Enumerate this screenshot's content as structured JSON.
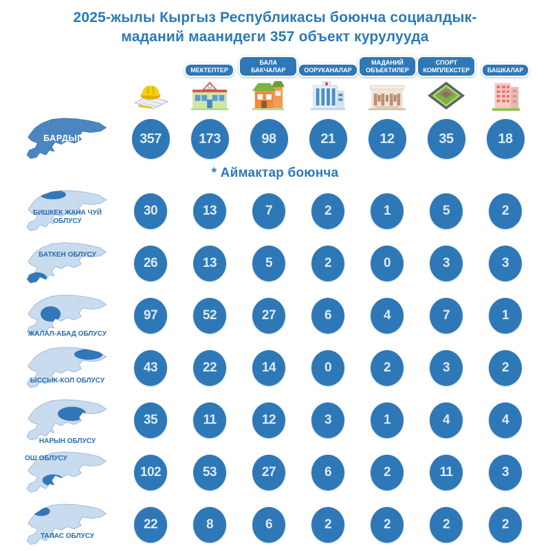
{
  "title": "2025-жылы Кыргыз Республикасы боюнча социалдык-маданий маанидеги 357 объект курулууда",
  "subtitle": "* Аймактар боюнча",
  "header": {
    "total_column_icon": "construction-helmet-icon",
    "columns": [
      {
        "label": "МЕКТЕПТЕР",
        "icon": "school-icon"
      },
      {
        "label": "БАЛА БАКЧАЛАР",
        "icon": "kindergarten-icon"
      },
      {
        "label": "ООРУКАНАЛАР",
        "icon": "hospital-icon"
      },
      {
        "label": "МАДАНИЙ ОБЪЕКТИЛЕР",
        "icon": "culture-icon"
      },
      {
        "label": "СПОРТ КОМПЛЕКСТЕР",
        "icon": "sport-icon"
      },
      {
        "label": "БАШКАЛАР",
        "icon": "other-building-icon"
      }
    ]
  },
  "rows": [
    {
      "region": "БАРДЫГЫ",
      "values": [
        357,
        173,
        98,
        21,
        12,
        35,
        18
      ]
    },
    {
      "region": "БИШКЕК ЖАНА ЧУЙ ОБЛУСУ",
      "values": [
        30,
        13,
        7,
        2,
        1,
        5,
        2
      ]
    },
    {
      "region": "БАТКЕН ОБЛУСУ",
      "values": [
        26,
        13,
        5,
        2,
        0,
        3,
        3
      ]
    },
    {
      "region": "ЖАЛАЛ-АБАД ОБЛУСУ",
      "values": [
        97,
        52,
        27,
        6,
        4,
        7,
        1
      ]
    },
    {
      "region": "ЫССЫК-КОЛ ОБЛУСУ",
      "values": [
        43,
        22,
        14,
        0,
        2,
        3,
        2
      ]
    },
    {
      "region": "НАРЫН ОБЛУСУ",
      "values": [
        35,
        11,
        12,
        3,
        1,
        4,
        4
      ]
    },
    {
      "region": "ОШ ОБЛУСУ",
      "values": [
        102,
        53,
        27,
        6,
        2,
        11,
        3
      ]
    },
    {
      "region": "ТАЛАС ОБЛУСУ",
      "values": [
        22,
        8,
        6,
        2,
        2,
        2,
        2
      ]
    }
  ],
  "colors": {
    "accent_blue": "#2e78b8",
    "title_blue": "#2a79b8",
    "map_light_blue": "#c9dbee",
    "map_highlight_blue": "#4c86c1",
    "badge_text": "#ffffff"
  },
  "chart_data": {
    "type": "table",
    "title": "2025-жылы Кыргыз Республикасы боюнча социалдык-маданий маанидеги 357 объект курулууда",
    "subtitle": "* Аймактар боюнча",
    "columns": [
      "БАРДЫГЫ",
      "МЕКТЕПТЕР",
      "БАЛА БАКЧАЛАР",
      "ООРУКАНАЛАР",
      "МАДАНИЙ ОБЪЕКТИЛЕР",
      "СПОРТ КОМПЛЕКСТЕР",
      "БАШКАЛАР"
    ],
    "rows": [
      {
        "region": "БАРДЫГЫ",
        "values": [
          357,
          173,
          98,
          21,
          12,
          35,
          18
        ]
      },
      {
        "region": "БИШКЕК ЖАНА ЧУЙ ОБЛУСУ",
        "values": [
          30,
          13,
          7,
          2,
          1,
          5,
          2
        ]
      },
      {
        "region": "БАТКЕН ОБЛУСУ",
        "values": [
          26,
          13,
          5,
          2,
          0,
          3,
          3
        ]
      },
      {
        "region": "ЖАЛАЛ-АБАД ОБЛУСУ",
        "values": [
          97,
          52,
          27,
          6,
          4,
          7,
          1
        ]
      },
      {
        "region": "ЫССЫК-КОЛ ОБЛУСУ",
        "values": [
          43,
          22,
          14,
          0,
          2,
          3,
          2
        ]
      },
      {
        "region": "НАРЫН ОБЛУСУ",
        "values": [
          35,
          11,
          12,
          3,
          1,
          4,
          4
        ]
      },
      {
        "region": "ОШ ОБЛУСУ",
        "values": [
          102,
          53,
          27,
          6,
          2,
          11,
          3
        ]
      },
      {
        "region": "ТАЛАС ОБЛУСУ",
        "values": [
          22,
          8,
          6,
          2,
          2,
          2,
          2
        ]
      }
    ],
    "legend_position": "none",
    "grid": false
  }
}
